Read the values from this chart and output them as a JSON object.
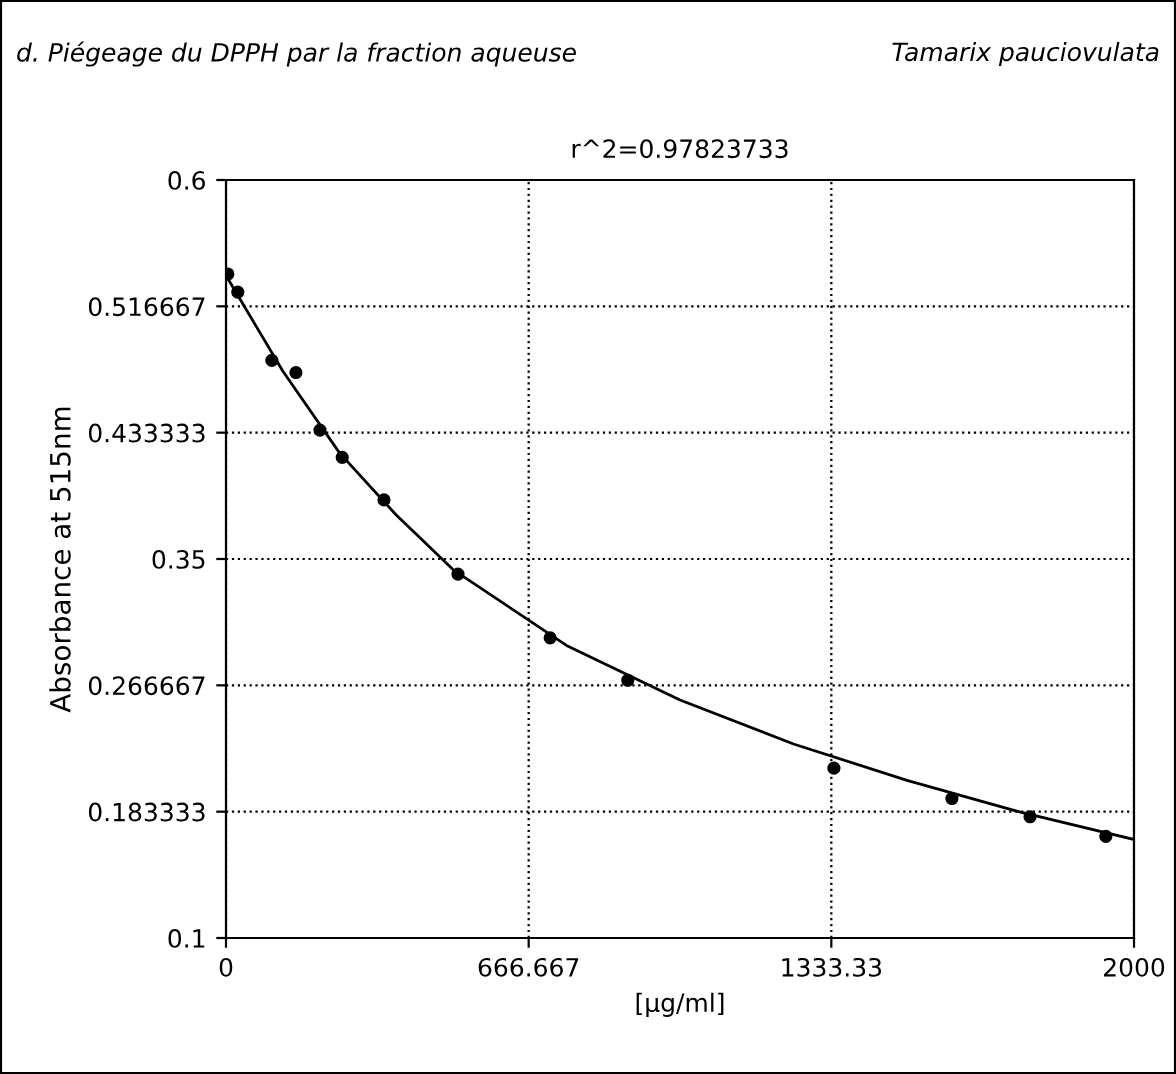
{
  "chart_data": {
    "type": "scatter",
    "title": "r^2=0.97823733",
    "xlabel": "[µg/ml]",
    "ylabel": "Absorbance at 515nm",
    "annotations": [
      "d. Piégeage du DPPH par la fraction aqueuse",
      "Tamarix pauciovulata"
    ],
    "xlim": [
      0,
      2000
    ],
    "xticks": [
      0,
      666.667,
      1333.33,
      2000
    ],
    "ylim": [
      0.1,
      0.6
    ],
    "yticks": [
      0.1,
      0.183333,
      0.266667,
      0.35,
      0.433333,
      0.516667,
      0.6
    ],
    "grid": true,
    "legend": false,
    "series": [
      {
        "marker": "circle",
        "color": "#000000",
        "x": [
          4,
          26,
          101,
          154,
          207,
          256,
          348,
          511,
          714,
          885,
          1339,
          1599,
          1771,
          1938
        ],
        "values": [
          0.538,
          0.526,
          0.481,
          0.473,
          0.435,
          0.417,
          0.389,
          0.34,
          0.298,
          0.27,
          0.212,
          0.192,
          0.18,
          0.167
        ]
      },
      {
        "type": "line",
        "marker": "none",
        "color": "#000000",
        "x": [
          0,
          125,
          250,
          375,
          500,
          750,
          1000,
          1250,
          1500,
          1750,
          2000
        ],
        "values": [
          0.537,
          0.474,
          0.42,
          0.379,
          0.343,
          0.293,
          0.257,
          0.228,
          0.204,
          0.183,
          0.165
        ]
      }
    ]
  }
}
